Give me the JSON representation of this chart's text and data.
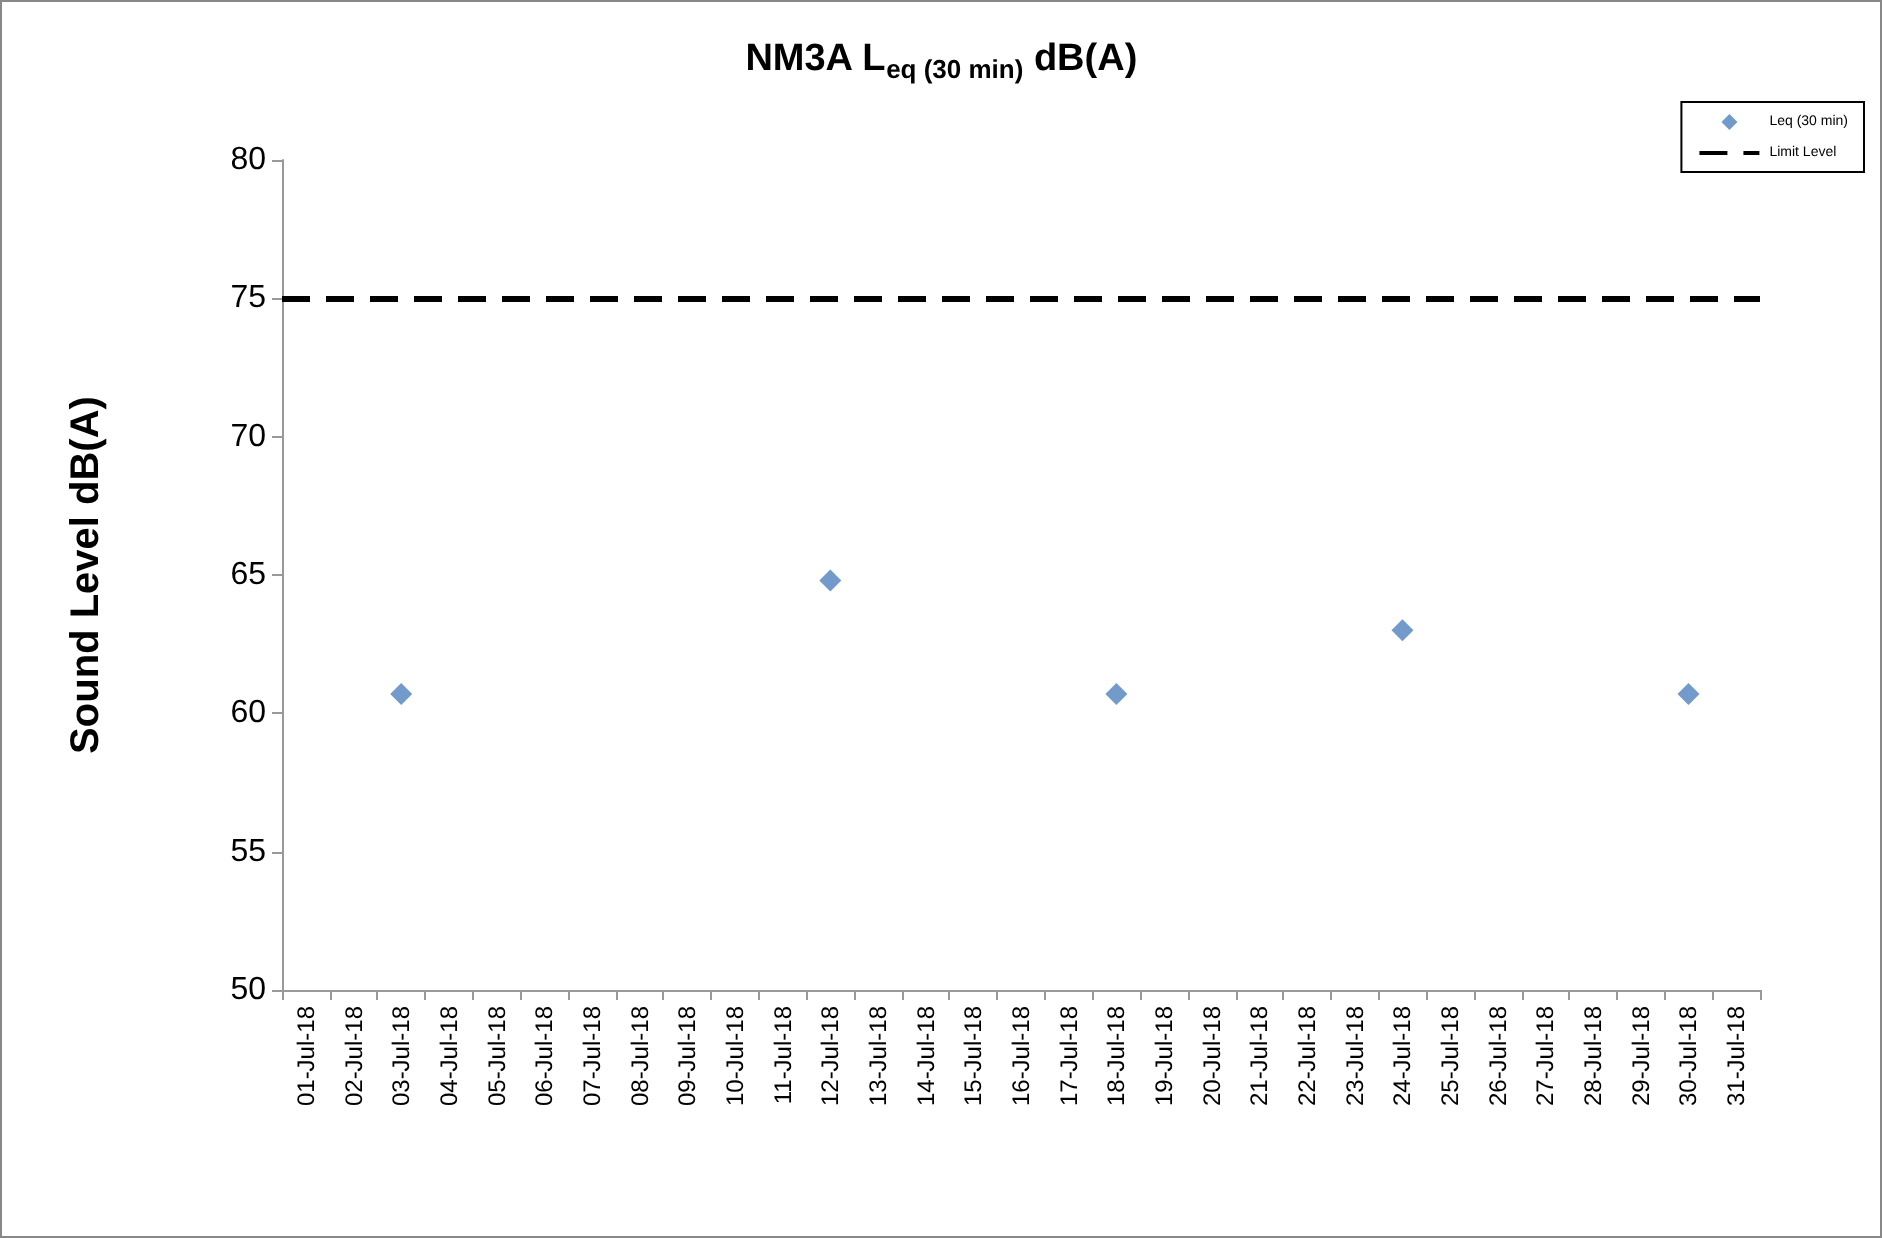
{
  "chart_data": {
    "type": "scatter",
    "title": "NM3A L$_{eq (30 min)}$ dB(A)",
    "ylabel": "Sound Level dB(A)",
    "categories": [
      "01-Jul-18",
      "02-Jul-18",
      "03-Jul-18",
      "04-Jul-18",
      "05-Jul-18",
      "06-Jul-18",
      "07-Jul-18",
      "08-Jul-18",
      "09-Jul-18",
      "10-Jul-18",
      "11-Jul-18",
      "12-Jul-18",
      "13-Jul-18",
      "14-Jul-18",
      "15-Jul-18",
      "16-Jul-18",
      "17-Jul-18",
      "18-Jul-18",
      "19-Jul-18",
      "20-Jul-18",
      "21-Jul-18",
      "22-Jul-18",
      "23-Jul-18",
      "24-Jul-18",
      "25-Jul-18",
      "26-Jul-18",
      "27-Jul-18",
      "28-Jul-18",
      "29-Jul-18",
      "30-Jul-18",
      "31-Jul-18"
    ],
    "series": [
      {
        "name": "Leq (30 min)",
        "color": "#4f81bd",
        "x": [
          "03-Jul-18",
          "12-Jul-18",
          "18-Jul-18",
          "24-Jul-18",
          "30-Jul-18"
        ],
        "values": [
          60.7,
          64.8,
          60.7,
          63.0,
          60.7
        ]
      }
    ],
    "ref_lines": [
      {
        "axis": "y",
        "value": 75,
        "label": "Limit Level",
        "color": "#000000",
        "line_style": "dashed"
      }
    ],
    "ylim": [
      50,
      80
    ],
    "yticks": [
      50,
      55,
      60,
      65,
      70,
      75,
      80
    ],
    "marker": "diamond",
    "legend": "top right",
    "grid": false
  }
}
